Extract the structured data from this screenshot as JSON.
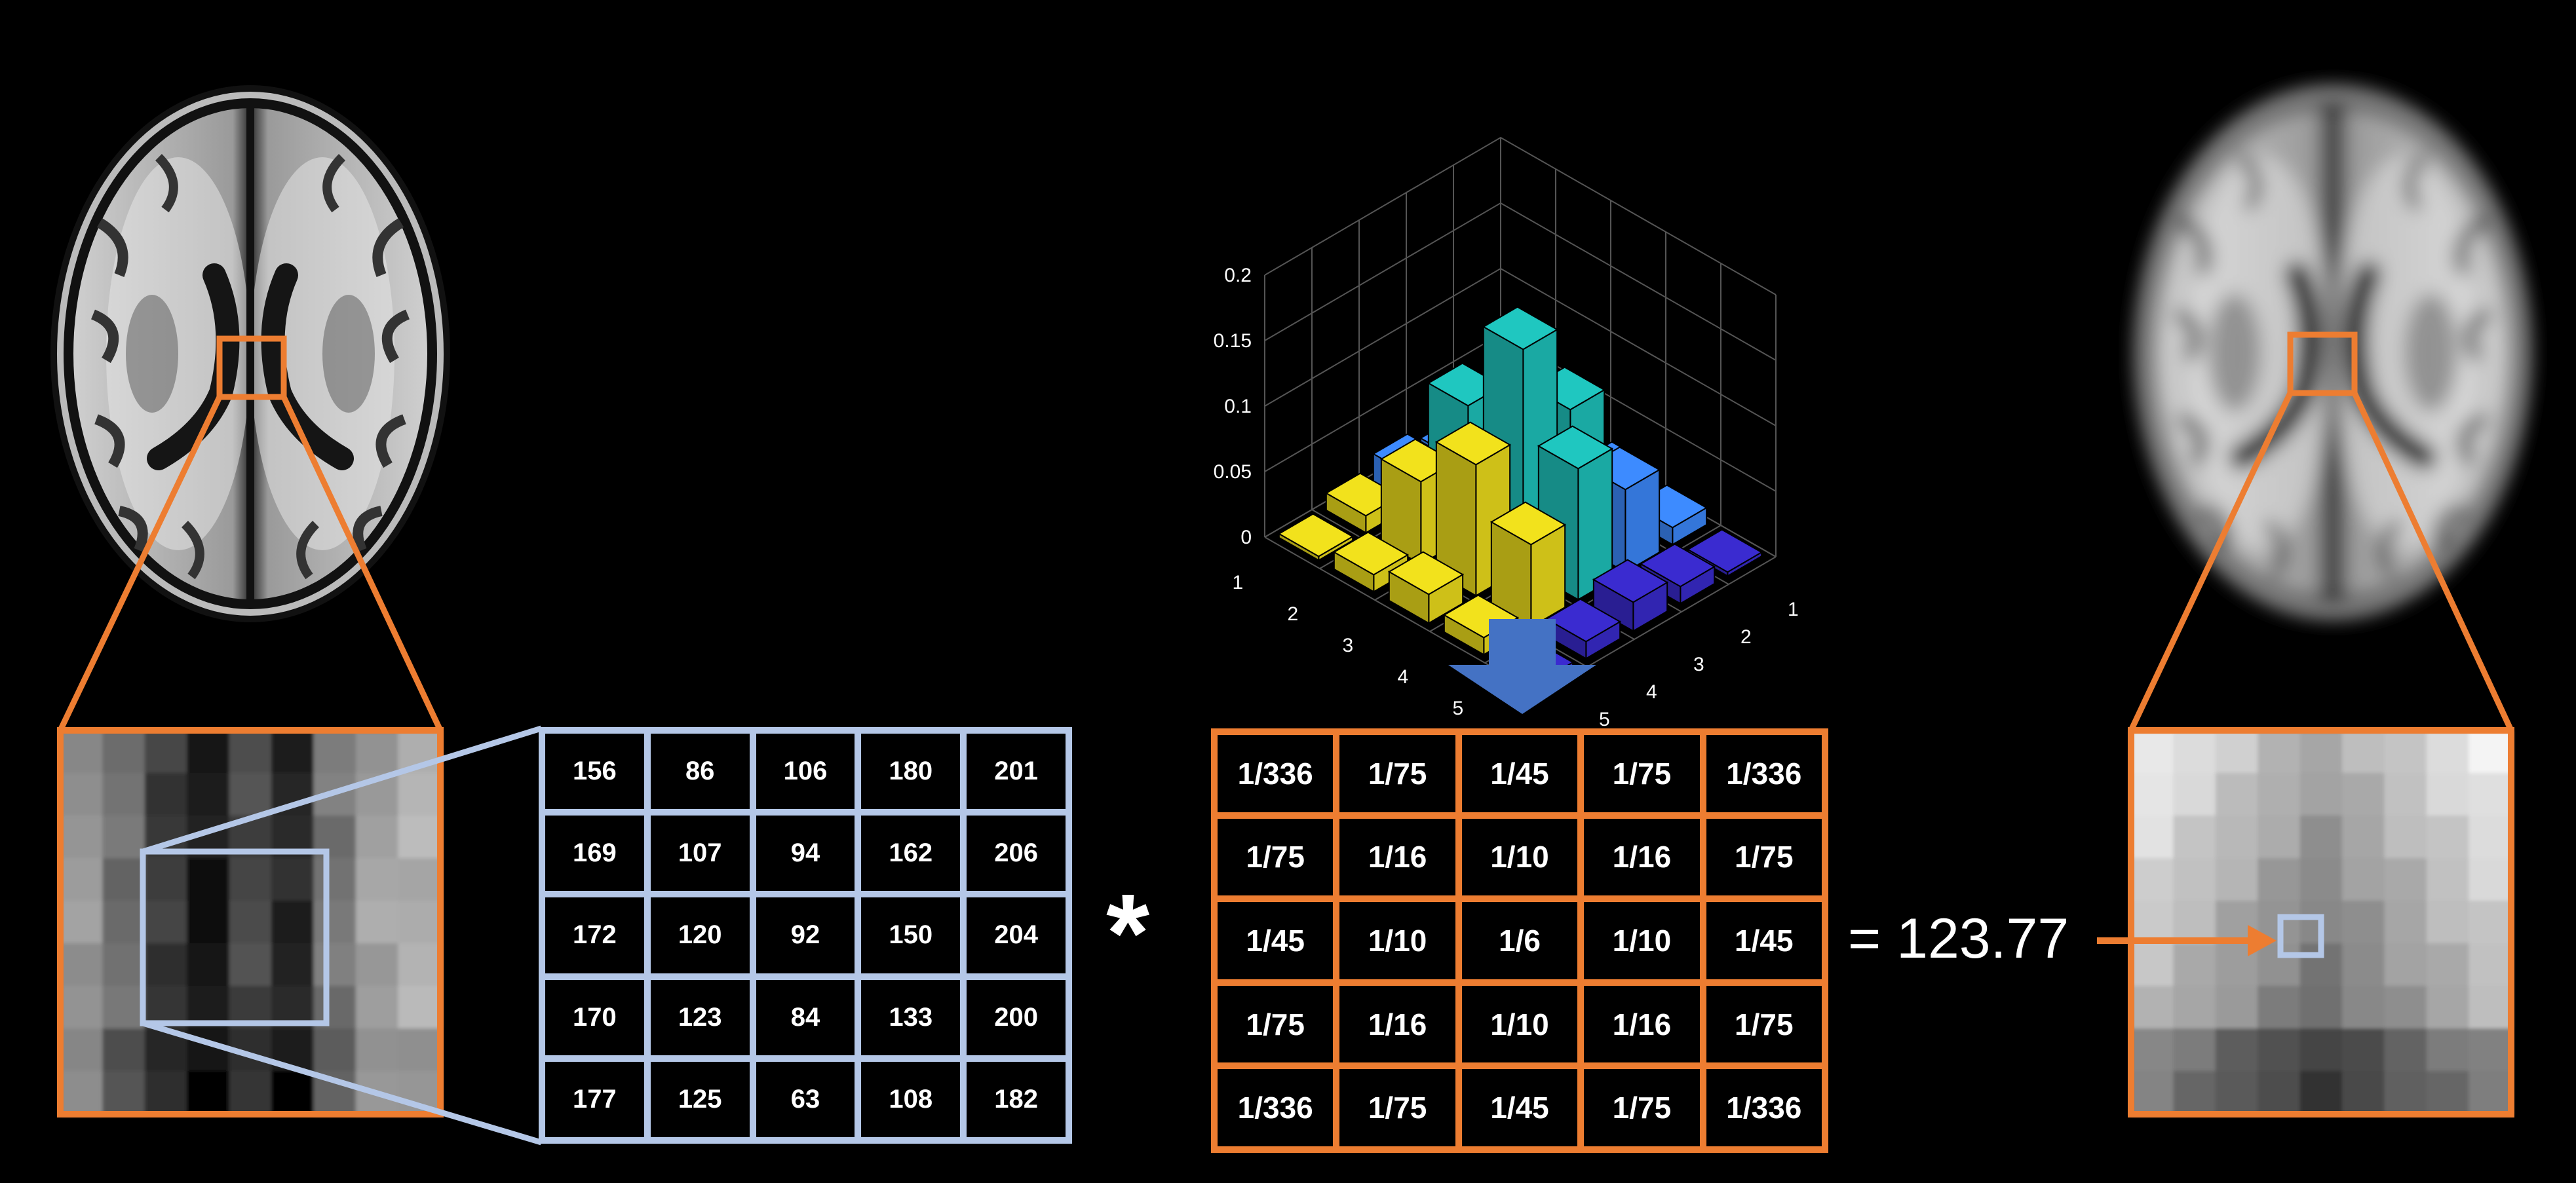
{
  "colors": {
    "background": "#000000",
    "orange": "#ed7d31",
    "light_blue": "#b4c7e7",
    "arrow_blue": "#4472c4",
    "bar_purple": "#3a2bd0",
    "bar_blue": "#3d8bff",
    "bar_teal": "#1fc7c0",
    "bar_yellow": "#f2e21c"
  },
  "images": {
    "original_icon": "sharp-brain-mri-icon",
    "smoothed_icon": "blurred-brain-mri-icon"
  },
  "pixel_matrix": [
    [
      "156",
      "86",
      "106",
      "180",
      "201"
    ],
    [
      "169",
      "107",
      "94",
      "162",
      "206"
    ],
    [
      "172",
      "120",
      "92",
      "150",
      "204"
    ],
    [
      "170",
      "123",
      "84",
      "133",
      "200"
    ],
    [
      "177",
      "125",
      "63",
      "108",
      "182"
    ]
  ],
  "kernel_matrix": [
    [
      "1/336",
      "1/75",
      "1/45",
      "1/75",
      "1/336"
    ],
    [
      "1/75",
      "1/16",
      "1/10",
      "1/16",
      "1/75"
    ],
    [
      "1/45",
      "1/10",
      "1/6",
      "1/10",
      "1/45"
    ],
    [
      "1/75",
      "1/16",
      "1/10",
      "1/16",
      "1/75"
    ],
    [
      "1/336",
      "1/75",
      "1/45",
      "1/75",
      "1/336"
    ]
  ],
  "operator": "*",
  "result": "= 123.77",
  "chart_data": {
    "type": "bar3d",
    "x_ticks": [
      "1",
      "2",
      "3",
      "4",
      "5"
    ],
    "y_ticks": [
      "1",
      "2",
      "3",
      "4",
      "5"
    ],
    "z_ticks": [
      "0",
      "0.05",
      "0.1",
      "0.15",
      "0.2"
    ],
    "zlim": [
      0,
      0.2
    ],
    "grid": true,
    "values": [
      [
        0.003,
        0.013,
        0.022,
        0.013,
        0.003
      ],
      [
        0.013,
        0.063,
        0.1,
        0.063,
        0.013
      ],
      [
        0.022,
        0.1,
        0.167,
        0.1,
        0.022
      ],
      [
        0.013,
        0.063,
        0.1,
        0.063,
        0.013
      ],
      [
        0.003,
        0.013,
        0.022,
        0.013,
        0.003
      ]
    ]
  }
}
